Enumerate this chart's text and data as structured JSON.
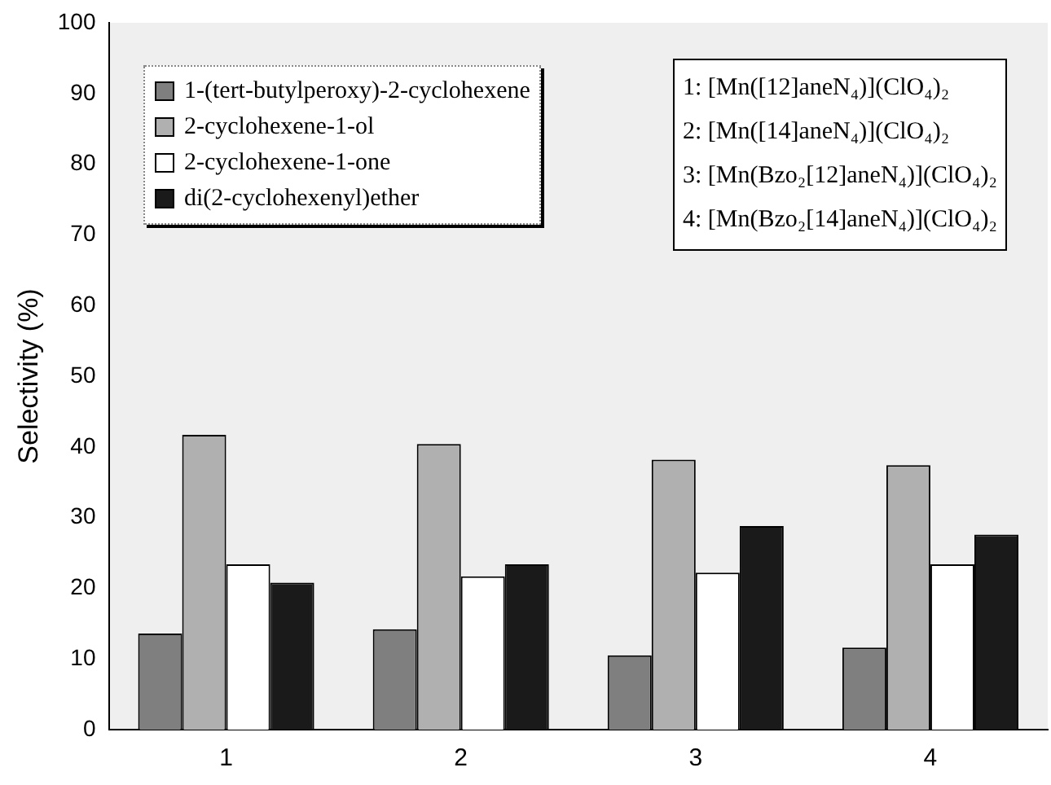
{
  "chart_data": {
    "type": "bar",
    "ylabel": "Selectivity (%)",
    "categories": [
      "1",
      "2",
      "3",
      "4"
    ],
    "series": [
      {
        "name": "1-(tert-butylperoxy)-2-cyclohexene",
        "color": "#7f7f7f",
        "values": [
          13.6,
          14.2,
          10.5,
          11.6
        ]
      },
      {
        "name": "2-cyclohexene-1-ol",
        "color": "#b0b0b0",
        "values": [
          41.7,
          40.4,
          38.2,
          37.4
        ]
      },
      {
        "name": "2-cyclohexene-1-one",
        "color": "#ffffff",
        "values": [
          23.4,
          21.7,
          22.2,
          23.4
        ]
      },
      {
        "name": "di(2-cyclohexenyl)ether",
        "color": "#1a1a1a",
        "values": [
          20.8,
          23.4,
          28.8,
          27.6
        ]
      }
    ],
    "ylim": [
      0,
      100
    ],
    "yticks": [
      0,
      10,
      20,
      30,
      40,
      50,
      60,
      70,
      80,
      90,
      100
    ],
    "grid": false,
    "legend": "top left",
    "annotations": [
      "1: [Mn([12]aneN₄)](ClO₄)₂",
      "2: [Mn([14]aneN₄)](ClO₄)₂",
      "3: [Mn(Bzo₂[12]aneN₄)](ClO₄)₂",
      "4: [Mn(Bzo₂[14]aneN₄)](ClO₄)₂"
    ]
  }
}
